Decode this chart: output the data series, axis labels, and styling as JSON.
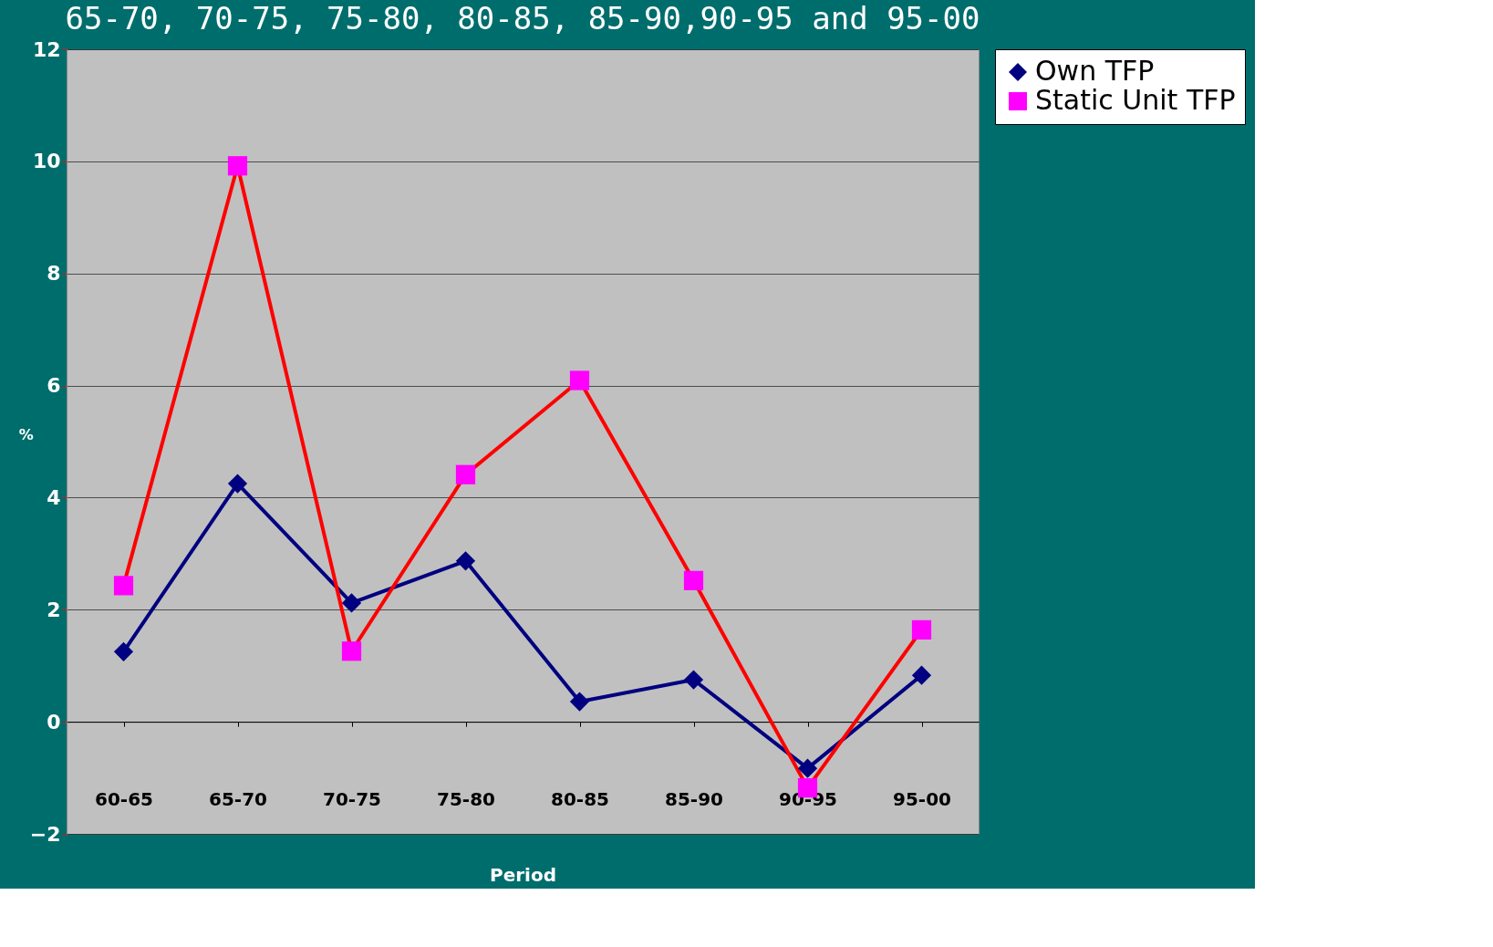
{
  "chart_data": {
    "type": "line",
    "title": "65-70, 70-75, 75-80, 80-85, 85-90,90-95 and 95-00",
    "xlabel": "Period",
    "ylabel": "%",
    "categories": [
      "60-65",
      "65-70",
      "70-75",
      "75-80",
      "80-85",
      "85-90",
      "90-95",
      "95-00"
    ],
    "series": [
      {
        "name": "Own TFP",
        "color": "#000080",
        "marker": "diamond",
        "values": [
          1.25,
          4.25,
          2.12,
          2.87,
          0.36,
          0.75,
          -0.83,
          0.83
        ]
      },
      {
        "name": "Static Unit TFP",
        "color": "#ff0000",
        "marker": "square",
        "values": [
          2.43,
          9.92,
          1.26,
          4.41,
          6.09,
          2.52,
          -1.18,
          1.64
        ]
      }
    ],
    "ylim": [
      -2,
      12
    ],
    "yticks": [
      -2,
      0,
      2,
      4,
      6,
      8,
      10,
      12
    ],
    "grid": "y",
    "legend": "right"
  }
}
